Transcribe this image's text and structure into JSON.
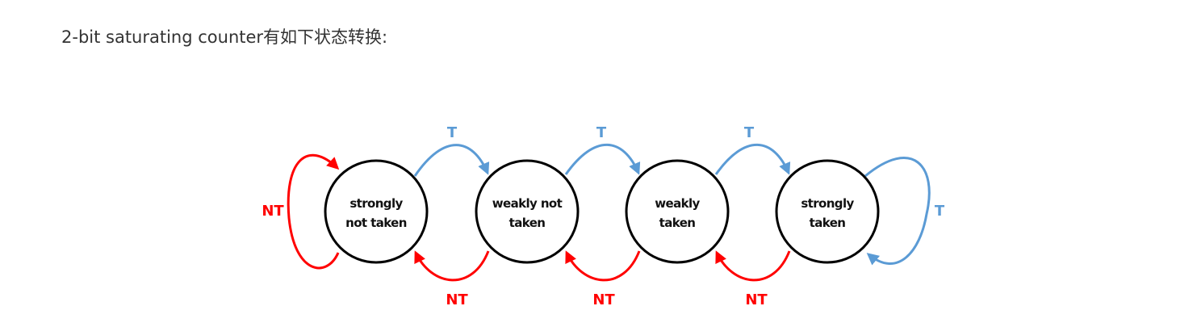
{
  "intro_text": "2-bit saturating counter有如下状态转换:",
  "states": [
    {
      "line1": "strongly",
      "line2": "not taken"
    },
    {
      "line1": "weakly not",
      "line2": "taken"
    },
    {
      "line1": "weakly",
      "line2": "taken"
    },
    {
      "line1": "strongly",
      "line2": "taken"
    }
  ],
  "labels": {
    "taken": "T",
    "not_taken": "NT"
  },
  "colors": {
    "taken_edge": "#5b9bd5",
    "not_taken_edge": "#ff0000",
    "state_border": "#000000"
  }
}
